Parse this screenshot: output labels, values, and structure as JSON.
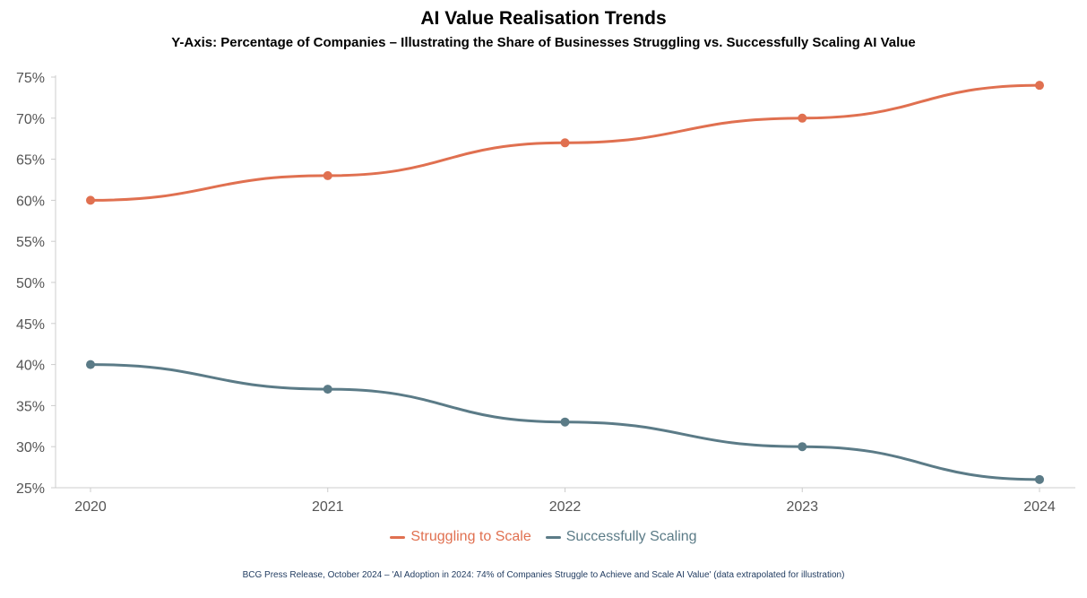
{
  "chart_data": {
    "type": "line",
    "title": "AI Value Realisation Trends",
    "subtitle": "Y-Axis: Percentage of Companies – Illustrating the Share of Businesses Struggling vs. Successfully Scaling AI Value",
    "categories": [
      "2020",
      "2021",
      "2022",
      "2023",
      "2024"
    ],
    "ylim": [
      25,
      75
    ],
    "yticks": [
      25,
      30,
      35,
      40,
      45,
      50,
      55,
      60,
      65,
      70,
      75
    ],
    "ytick_labels": [
      "25%",
      "30%",
      "35%",
      "40%",
      "45%",
      "50%",
      "55%",
      "60%",
      "65%",
      "70%",
      "75%"
    ],
    "grid": false,
    "legend_position": "bottom-center",
    "series": [
      {
        "name": "Struggling to Scale",
        "values": [
          60,
          63,
          67,
          70,
          74
        ],
        "color": "#e07050"
      },
      {
        "name": "Successfully Scaling",
        "values": [
          40,
          37,
          33,
          30,
          26
        ],
        "color": "#5b7b87"
      }
    ],
    "source": "BCG Press Release, October 2024 – 'AI Adoption in 2024: 74% of Companies Struggle to Achieve and Scale AI Value' (data extrapolated for illustration)"
  }
}
